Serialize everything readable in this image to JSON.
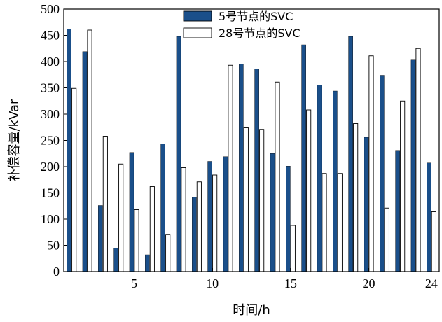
{
  "chart_data": {
    "type": "bar",
    "xlabel": "时间/h",
    "ylabel": "补偿容量/kVar",
    "ylim": [
      0,
      500
    ],
    "yticks": [
      0,
      50,
      100,
      150,
      200,
      250,
      300,
      350,
      400,
      450,
      500
    ],
    "xtick_values": [
      5,
      10,
      15,
      20,
      24
    ],
    "categories": [
      1,
      2,
      3,
      4,
      5,
      6,
      7,
      8,
      9,
      10,
      11,
      12,
      13,
      14,
      15,
      16,
      17,
      18,
      19,
      20,
      21,
      22,
      23,
      24
    ],
    "legend_position": "top-center",
    "series": [
      {
        "name": "5号节点的SVC",
        "color": "#1a4f8a",
        "values": [
          462,
          419,
          126,
          45,
          227,
          32,
          243,
          448,
          142,
          210,
          219,
          395,
          386,
          225,
          201,
          432,
          355,
          344,
          448,
          256,
          374,
          231,
          403,
          207
        ]
      },
      {
        "name": "28号节点的SVC",
        "color": "#ffffff",
        "values": [
          349,
          460,
          258,
          205,
          118,
          162,
          71,
          198,
          171,
          184,
          393,
          274,
          271,
          361,
          88,
          308,
          187,
          187,
          282,
          411,
          121,
          325,
          425,
          114
        ]
      }
    ]
  }
}
